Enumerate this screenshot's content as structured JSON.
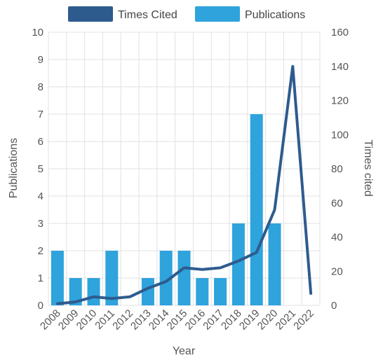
{
  "chart_data": {
    "type": "bar",
    "title": "",
    "xlabel": "Year",
    "ylabel": "Publications",
    "y2label": "Times cited",
    "categories": [
      "2008",
      "2009",
      "2010",
      "2011",
      "2012",
      "2013",
      "2014",
      "2015",
      "2016",
      "2017",
      "2018",
      "2019",
      "2020",
      "2021",
      "2022"
    ],
    "ylim": [
      0,
      10
    ],
    "y2lim": [
      0,
      160
    ],
    "yticks": [
      "0",
      "1",
      "2",
      "3",
      "4",
      "5",
      "6",
      "7",
      "8",
      "9",
      "10"
    ],
    "y2ticks": [
      "0",
      "20",
      "40",
      "60",
      "80",
      "100",
      "120",
      "140",
      "160"
    ],
    "grid": true,
    "legend_position": "top",
    "series": [
      {
        "name": "Times Cited",
        "type": "line",
        "axis": "right",
        "color": "#2e5b8e",
        "values": [
          1,
          2,
          5,
          4,
          5,
          10,
          14,
          22,
          21,
          22,
          26,
          31,
          56,
          140,
          7
        ]
      },
      {
        "name": "Publications",
        "type": "bar",
        "axis": "left",
        "color": "#2ea3dc",
        "values": [
          2,
          1,
          1,
          2,
          0,
          1,
          2,
          2,
          1,
          1,
          3,
          7,
          3,
          0,
          0
        ]
      }
    ]
  }
}
